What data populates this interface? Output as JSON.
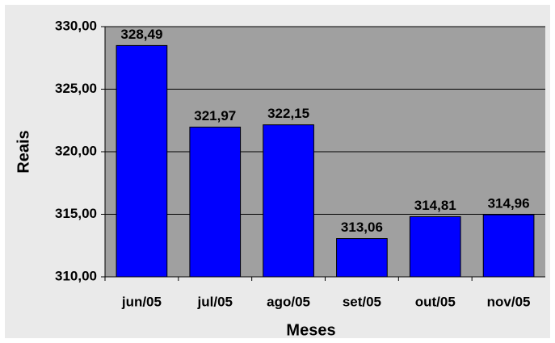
{
  "chart_data": {
    "type": "bar",
    "x_label": "Meses",
    "y_label": "Reais",
    "categories": [
      "jun/05",
      "jul/05",
      "ago/05",
      "set/05",
      "out/05",
      "nov/05"
    ],
    "values": [
      328.49,
      321.97,
      322.15,
      313.06,
      314.81,
      314.96
    ],
    "value_labels": [
      "328,49",
      "321,97",
      "322,15",
      "313,06",
      "314,81",
      "314,96"
    ],
    "color": "#0000ff",
    "ylim": [
      310,
      330
    ],
    "yticks": [
      {
        "value": 310,
        "label": "310,00"
      },
      {
        "value": 315,
        "label": "315,00"
      },
      {
        "value": 320,
        "label": "320,00"
      },
      {
        "value": 325,
        "label": "325,00"
      },
      {
        "value": 330,
        "label": "330,00"
      }
    ],
    "grid": true
  }
}
